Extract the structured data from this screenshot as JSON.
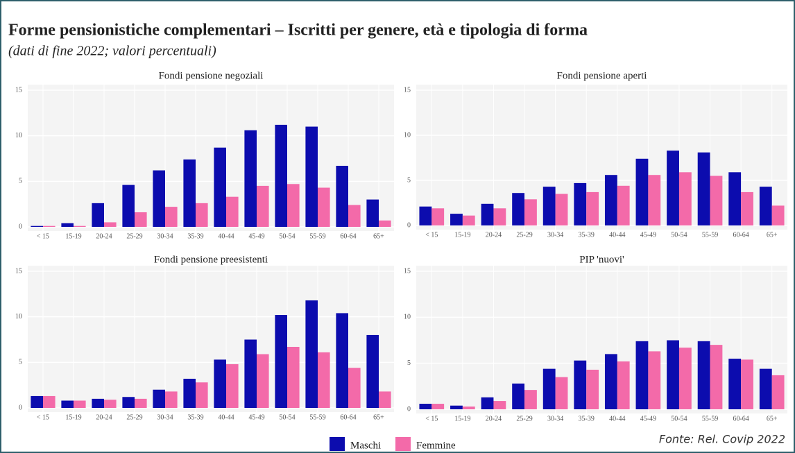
{
  "title": "Forme pensionistiche complementari – Iscritti per genere, età e tipologia di forma",
  "subtitle": "(dati di fine 2022; valori percentuali)",
  "source": "Fonte: Rel. Covip 2022",
  "chart_data": [
    {
      "type": "bar",
      "title": "Fondi pensione negoziali",
      "categories": [
        "< 15",
        "15-19",
        "20-24",
        "25-29",
        "30-34",
        "35-39",
        "40-44",
        "45-49",
        "50-54",
        "55-59",
        "60-64",
        "65+"
      ],
      "series": [
        {
          "name": "Maschi",
          "color": "#0c0cae",
          "values": [
            0.1,
            0.4,
            2.6,
            4.6,
            6.2,
            7.4,
            8.7,
            10.6,
            11.2,
            11.0,
            6.7,
            3.0
          ]
        },
        {
          "name": "Femmine",
          "color": "#f36aa9",
          "values": [
            0.1,
            0.1,
            0.5,
            1.6,
            2.2,
            2.6,
            3.3,
            4.5,
            4.7,
            4.3,
            2.4,
            0.7
          ]
        }
      ],
      "ylim": [
        0,
        15
      ],
      "yticks": [
        0,
        5,
        10,
        15
      ],
      "grid": true
    },
    {
      "type": "bar",
      "title": "Fondi pensione aperti",
      "categories": [
        "< 15",
        "15-19",
        "20-24",
        "25-29",
        "30-34",
        "35-39",
        "40-44",
        "45-49",
        "50-54",
        "55-59",
        "60-64",
        "65+"
      ],
      "series": [
        {
          "name": "Maschi",
          "color": "#0c0cae",
          "values": [
            2.1,
            1.3,
            2.4,
            3.6,
            4.3,
            4.7,
            5.6,
            7.4,
            8.3,
            8.1,
            5.9,
            4.3
          ]
        },
        {
          "name": "Femmine",
          "color": "#f36aa9",
          "values": [
            1.9,
            1.1,
            1.9,
            2.9,
            3.5,
            3.7,
            4.4,
            5.6,
            5.9,
            5.5,
            3.7,
            2.2
          ]
        }
      ],
      "ylim": [
        0,
        15
      ],
      "yticks": [
        0,
        5,
        10,
        15
      ],
      "grid": true
    },
    {
      "type": "bar",
      "title": "Fondi pensione preesistenti",
      "categories": [
        "< 15",
        "15-19",
        "20-24",
        "25-29",
        "30-34",
        "35-39",
        "40-44",
        "45-49",
        "50-54",
        "55-59",
        "60-64",
        "65+"
      ],
      "series": [
        {
          "name": "Maschi",
          "color": "#0c0cae",
          "values": [
            1.3,
            0.8,
            1.0,
            1.2,
            2.0,
            3.2,
            5.3,
            7.5,
            10.2,
            11.8,
            10.4,
            8.0
          ]
        },
        {
          "name": "Femmine",
          "color": "#f36aa9",
          "values": [
            1.3,
            0.8,
            0.9,
            1.0,
            1.8,
            2.8,
            4.8,
            5.9,
            6.7,
            6.1,
            4.4,
            1.8
          ]
        }
      ],
      "ylim": [
        0,
        15
      ],
      "yticks": [
        0,
        5,
        10,
        15
      ],
      "grid": true
    },
    {
      "type": "bar",
      "title": "PIP 'nuovi'",
      "categories": [
        "< 15",
        "15-19",
        "20-24",
        "25-29",
        "30-34",
        "35-39",
        "40-44",
        "45-49",
        "50-54",
        "55-59",
        "60-64",
        "65+"
      ],
      "series": [
        {
          "name": "Maschi",
          "color": "#0c0cae",
          "values": [
            0.6,
            0.4,
            1.3,
            2.8,
            4.4,
            5.3,
            6.0,
            7.4,
            7.5,
            7.4,
            5.5,
            4.4
          ]
        },
        {
          "name": "Femmine",
          "color": "#f36aa9",
          "values": [
            0.6,
            0.3,
            0.9,
            2.1,
            3.5,
            4.3,
            5.2,
            6.3,
            6.7,
            7.0,
            5.4,
            3.7
          ]
        }
      ],
      "ylim": [
        0,
        15
      ],
      "yticks": [
        0,
        5,
        10,
        15
      ],
      "grid": true
    }
  ]
}
